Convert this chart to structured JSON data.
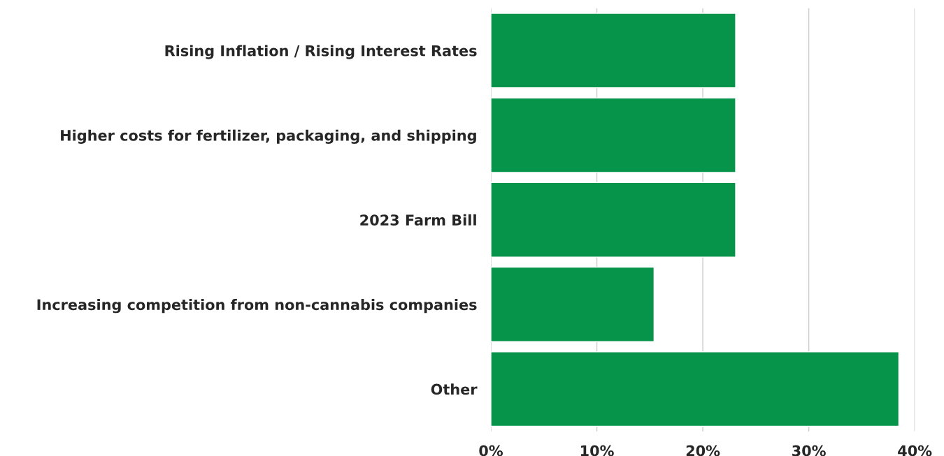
{
  "chart_data": {
    "type": "bar",
    "orientation": "horizontal",
    "categories": [
      "Rising Inflation / Rising Interest Rates",
      "Higher costs for fertilizer, packaging, and shipping",
      "2023 Farm Bill",
      "Increasing competition from non-cannabis companies",
      "Other"
    ],
    "values": [
      23.1,
      23.1,
      23.1,
      15.4,
      38.5
    ],
    "color": "#06934a",
    "xlim": [
      0,
      40
    ],
    "xticks": [
      {
        "value": 0,
        "label": "0%"
      },
      {
        "value": 10,
        "label": "10%"
      },
      {
        "value": 20,
        "label": "20%"
      },
      {
        "value": 30,
        "label": "30%"
      },
      {
        "value": 40,
        "label": "40%"
      }
    ],
    "grid": "x"
  }
}
